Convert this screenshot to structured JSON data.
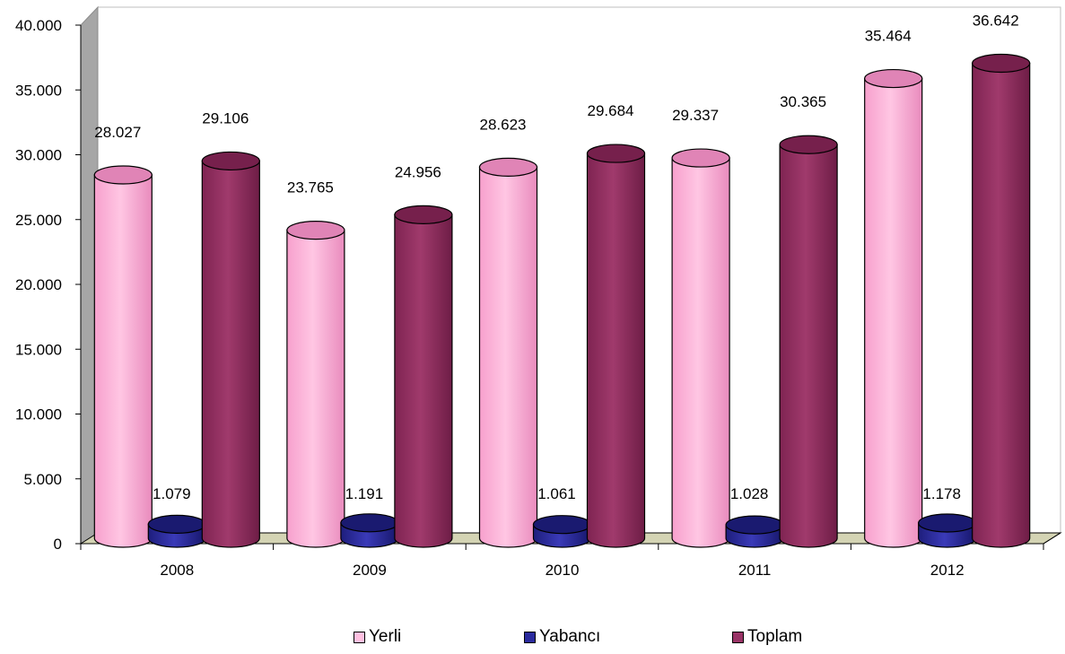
{
  "chart_data": {
    "type": "bar",
    "categories": [
      "2008",
      "2009",
      "2010",
      "2011",
      "2012"
    ],
    "series": [
      {
        "name": "Yerli",
        "values": [
          28027,
          23765,
          28623,
          29337,
          35464
        ],
        "labels": [
          "28.027",
          "23.765",
          "28.623",
          "29.337",
          "35.464"
        ],
        "color": "#ff99cc"
      },
      {
        "name": "Yabancı",
        "values": [
          1079,
          1191,
          1061,
          1028,
          1178
        ],
        "labels": [
          "1.079",
          "1.191",
          "1.061",
          "1.028",
          "1.178"
        ],
        "color": "#2b2b9e"
      },
      {
        "name": "Toplam",
        "values": [
          29106,
          24956,
          29684,
          30365,
          36642
        ],
        "labels": [
          "29.106",
          "24.956",
          "29.684",
          "30.365",
          "36.642"
        ],
        "color": "#993366"
      }
    ],
    "ylim": [
      0,
      40000
    ],
    "yticks": [
      0,
      5000,
      10000,
      15000,
      20000,
      25000,
      30000,
      35000,
      40000
    ],
    "ytick_labels": [
      "0",
      "5.000",
      "10.000",
      "15.000",
      "20.000",
      "25.000",
      "30.000",
      "35.000",
      "40.000"
    ],
    "legend_position": "bottom",
    "grid": false
  },
  "legend": {
    "items": [
      {
        "label": "Yerli"
      },
      {
        "label": "Yabancı"
      },
      {
        "label": "Toplam"
      }
    ]
  }
}
